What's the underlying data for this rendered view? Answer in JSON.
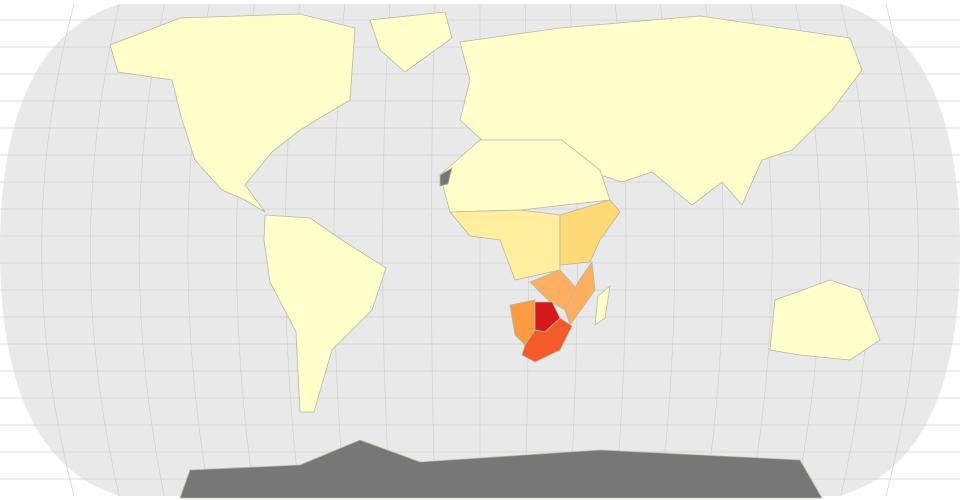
{
  "map": {
    "projection": "robinson",
    "colors": {
      "ocean": "#e9e9e9",
      "grid": "#d0d0d0",
      "no_data": "#777777",
      "lowest": "#ffffcc",
      "low": "#ffeda0",
      "mid_low": "#fed976",
      "mid": "#fdae61",
      "mid_high": "#fd9b42",
      "high": "#f45a2a",
      "highest": "#d7191c"
    },
    "regions": [
      {
        "name": "north-america",
        "level": "lowest"
      },
      {
        "name": "greenland",
        "level": "lowest"
      },
      {
        "name": "south-america",
        "level": "lowest"
      },
      {
        "name": "eurasia",
        "level": "lowest"
      },
      {
        "name": "africa-north",
        "level": "lowest"
      },
      {
        "name": "africa-west-central",
        "level": "low"
      },
      {
        "name": "east-africa",
        "level": "mid_low"
      },
      {
        "name": "zambia-zimbabwe",
        "level": "mid"
      },
      {
        "name": "mozambique",
        "level": "mid"
      },
      {
        "name": "namibia",
        "level": "mid_high"
      },
      {
        "name": "botswana",
        "level": "highest"
      },
      {
        "name": "south-africa",
        "level": "high"
      },
      {
        "name": "madagascar",
        "level": "lowest"
      },
      {
        "name": "australia",
        "level": "lowest"
      },
      {
        "name": "antarctica",
        "level": "no_data"
      },
      {
        "name": "western-sahara",
        "level": "no_data"
      }
    ]
  }
}
